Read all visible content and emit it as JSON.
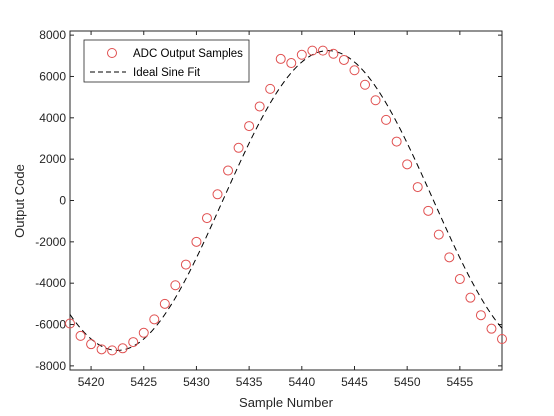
{
  "chart_data": {
    "type": "scatter",
    "title": "",
    "xlabel": "Sample Number",
    "ylabel": "Output Code",
    "xlim": [
      5418,
      5459
    ],
    "ylim": [
      -8200,
      8200
    ],
    "xticks": [
      5420,
      5425,
      5430,
      5435,
      5440,
      5445,
      5450,
      5455
    ],
    "yticks": [
      -8000,
      -6000,
      -4000,
      -2000,
      0,
      2000,
      4000,
      6000,
      8000
    ],
    "grid": false,
    "legend_position": "top-left",
    "series": [
      {
        "name": "ADC Output Samples",
        "kind": "markers",
        "marker": "circle-open",
        "color": "#e05050",
        "x": [
          5418,
          5419,
          5420,
          5421,
          5422,
          5423,
          5424,
          5425,
          5426,
          5427,
          5428,
          5429,
          5430,
          5431,
          5432,
          5433,
          5434,
          5435,
          5436,
          5437,
          5438,
          5439,
          5440,
          5441,
          5442,
          5443,
          5444,
          5445,
          5446,
          5447,
          5448,
          5449,
          5450,
          5451,
          5452,
          5453,
          5454,
          5455,
          5456,
          5457,
          5458,
          5459
        ],
        "y": [
          -5950,
          -6550,
          -6950,
          -7200,
          -7250,
          -7150,
          -6850,
          -6400,
          -5750,
          -5000,
          -4100,
          -3100,
          -2000,
          -850,
          300,
          1450,
          2550,
          3600,
          4550,
          5400,
          6850,
          6650,
          7050,
          7250,
          7250,
          7100,
          6800,
          6300,
          5600,
          4850,
          3900,
          2850,
          1750,
          650,
          -500,
          -1650,
          -2750,
          -3800,
          -4700,
          -5550,
          -6200,
          -6700
        ]
      },
      {
        "name": "Ideal Sine Fit",
        "kind": "line",
        "style": "dashed",
        "color": "#000000",
        "amplitude": 7250,
        "period": 40,
        "peak_x": 5442.5
      }
    ]
  }
}
